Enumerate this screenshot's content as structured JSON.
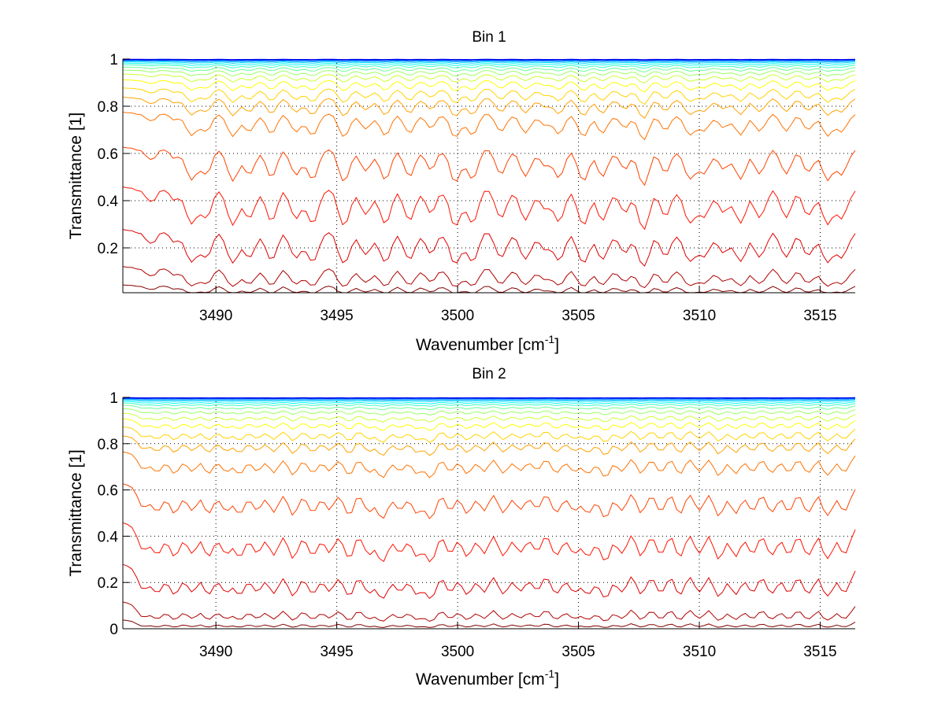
{
  "chart_data": [
    {
      "type": "line",
      "title": "Bin 1",
      "xlabel": "Wavenumber [cm",
      "xlabel_superscript": "-1",
      "xlabel_suffix": "]",
      "ylabel": "Transmittance [1]",
      "xlim": [
        3486.15,
        3516.45
      ],
      "ylim": [
        0.01,
        1
      ],
      "xticks": [
        3490,
        3495,
        3500,
        3505,
        3510,
        3515
      ],
      "xtick_labels": [
        "3490",
        "3495",
        "3500",
        "3505",
        "3510",
        "3515"
      ],
      "yticks": [
        0.2,
        0.4,
        0.6,
        0.8,
        1
      ],
      "ytick_labels": [
        "0.2",
        "0.4",
        "0.6",
        "0.8",
        "1"
      ],
      "grid": true,
      "legend": "none",
      "colormap": "jet",
      "series_count": 20,
      "series_baselines": [
        1.0,
        0.999,
        0.997,
        0.995,
        0.992,
        0.988,
        0.982,
        0.975,
        0.965,
        0.952,
        0.935,
        0.91,
        0.875,
        0.835,
        0.77,
        0.62,
        0.45,
        0.27,
        0.115,
        0.04
      ],
      "absorption_lines": {
        "positions": [
          3487.3,
          3488.3,
          3489.0,
          3489.6,
          3490.7,
          3491.4,
          3492.3,
          3493.3,
          3494.0,
          3495.3,
          3496.2,
          3497.0,
          3498.0,
          3498.9,
          3499.9,
          3500.6,
          3501.8,
          3502.8,
          3503.6,
          3504.2,
          3505.2,
          3506.0,
          3506.9,
          3507.7,
          3508.6,
          3509.6,
          3510.2,
          3511.0,
          3511.7,
          3512.5,
          3513.6,
          3514.5,
          3515.3,
          3515.9
        ],
        "depths": [
          0.2,
          0.15,
          0.55,
          0.45,
          0.6,
          0.45,
          0.5,
          0.45,
          0.55,
          0.6,
          0.4,
          0.55,
          0.5,
          0.35,
          0.6,
          0.55,
          0.45,
          0.5,
          0.3,
          0.5,
          0.6,
          0.5,
          0.35,
          0.7,
          0.4,
          0.55,
          0.45,
          0.35,
          0.55,
          0.45,
          0.45,
          0.4,
          0.55,
          0.45
        ]
      }
    },
    {
      "type": "line",
      "title": "Bin 2",
      "xlabel": "Wavenumber [cm",
      "xlabel_superscript": "-1",
      "xlabel_suffix": "]",
      "ylabel": "Transmittance [1]",
      "xlim": [
        3486.15,
        3516.45
      ],
      "ylim": [
        0,
        1
      ],
      "xticks": [
        3490,
        3495,
        3500,
        3505,
        3510,
        3515
      ],
      "xtick_labels": [
        "3490",
        "3495",
        "3500",
        "3505",
        "3510",
        "3515"
      ],
      "yticks": [
        0,
        0.2,
        0.4,
        0.6,
        0.8,
        1
      ],
      "ytick_labels": [
        "0",
        "0.2",
        "0.4",
        "0.6",
        "0.8",
        "1"
      ],
      "grid": true,
      "legend": "none",
      "colormap": "jet",
      "series_count": 20,
      "series_baselines": [
        1.0,
        0.999,
        0.997,
        0.995,
        0.992,
        0.988,
        0.982,
        0.975,
        0.965,
        0.95,
        0.93,
        0.905,
        0.87,
        0.83,
        0.76,
        0.62,
        0.45,
        0.27,
        0.11,
        0.035
      ],
      "absorption_lines": {
        "positions": [
          3487.0,
          3487.6,
          3488.3,
          3489.0,
          3489.7,
          3490.4,
          3491.0,
          3491.7,
          3492.4,
          3493.2,
          3494.0,
          3494.7,
          3495.5,
          3496.3,
          3496.9,
          3497.6,
          3498.3,
          3498.9,
          3499.7,
          3500.4,
          3501.1,
          3501.9,
          3502.6,
          3503.3,
          3504.1,
          3504.8,
          3505.4,
          3506.1,
          3506.8,
          3507.6,
          3508.4,
          3509.2,
          3510.0,
          3510.8,
          3511.5,
          3512.2,
          3513.0,
          3513.7,
          3514.5,
          3515.3,
          3516.0
        ],
        "depths": [
          0.4,
          0.45,
          0.5,
          0.45,
          0.5,
          0.45,
          0.5,
          0.45,
          0.5,
          0.55,
          0.5,
          0.45,
          0.55,
          0.45,
          0.6,
          0.45,
          0.5,
          0.6,
          0.45,
          0.5,
          0.45,
          0.5,
          0.45,
          0.4,
          0.5,
          0.45,
          0.5,
          0.6,
          0.45,
          0.5,
          0.45,
          0.5,
          0.45,
          0.55,
          0.5,
          0.45,
          0.5,
          0.45,
          0.5,
          0.55,
          0.45
        ]
      }
    }
  ]
}
